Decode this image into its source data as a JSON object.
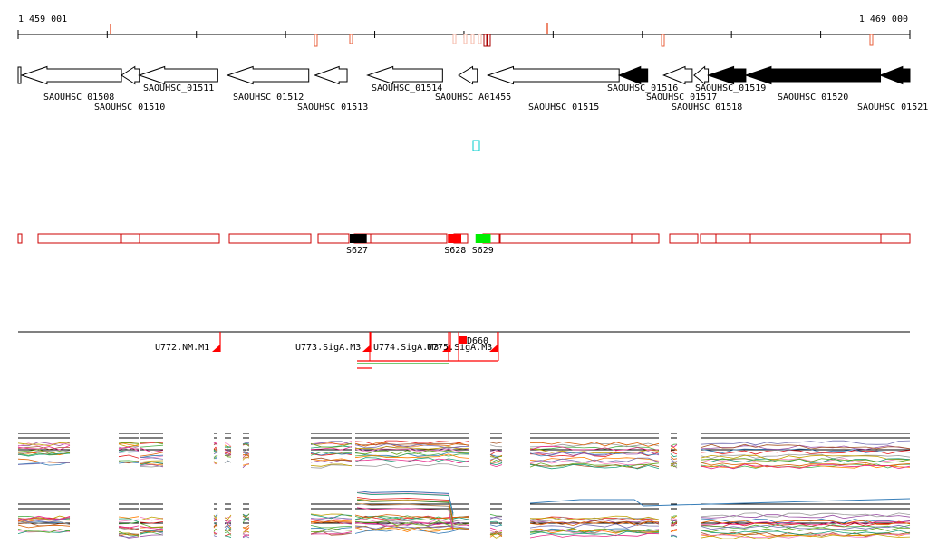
{
  "scale": {
    "start_label": "1 459 001",
    "end_label": "1 469 000",
    "start_bp": 1459001,
    "end_bp": 1469000,
    "marker_color": "#e8613c"
  },
  "genes": [
    {
      "label": "SAOUHSC_01508",
      "start": 1459041,
      "end": 1460160,
      "strand": "-",
      "filled": false
    },
    {
      "label": "SAOUHSC_01510",
      "start": 1460160,
      "end": 1460360,
      "strand": "-",
      "filled": false
    },
    {
      "label": "SAOUHSC_01511",
      "start": 1460360,
      "end": 1461240,
      "strand": "-",
      "filled": false
    },
    {
      "label": "SAOUHSC_01512",
      "start": 1461350,
      "end": 1462260,
      "strand": "-",
      "filled": false
    },
    {
      "label": "SAOUHSC_01513",
      "start": 1462330,
      "end": 1462690,
      "strand": "-",
      "filled": false
    },
    {
      "label": "SAOUHSC_01514",
      "start": 1462920,
      "end": 1463760,
      "strand": "-",
      "filled": false
    },
    {
      "label": "SAOUHSC_A01455",
      "start": 1463940,
      "end": 1464150,
      "strand": "-",
      "filled": false
    },
    {
      "label": "SAOUHSC_01515",
      "start": 1464270,
      "end": 1465740,
      "strand": "-",
      "filled": false
    },
    {
      "label": "SAOUHSC_01516",
      "start": 1465740,
      "end": 1466060,
      "strand": "-",
      "filled": true
    },
    {
      "label": "SAOUHSC_01517",
      "start": 1466240,
      "end": 1466560,
      "strand": "-",
      "filled": false
    },
    {
      "label": "SAOUHSC_01518",
      "start": 1466580,
      "end": 1466740,
      "strand": "-",
      "filled": false
    },
    {
      "label": "SAOUHSC_01519",
      "start": 1466740,
      "end": 1467160,
      "strand": "-",
      "filled": true
    },
    {
      "label": "SAOUHSC_01520",
      "start": 1467160,
      "end": 1468670,
      "strand": "-",
      "filled": true
    },
    {
      "label": "SAOUHSC_01521",
      "start": 1468670,
      "end": 1469000,
      "strand": "-",
      "filled": true
    }
  ],
  "small_rnas": [
    {
      "label": "S627",
      "start": 1462720,
      "end": 1462910,
      "color": "#000000"
    },
    {
      "label": "S628",
      "start": 1463820,
      "end": 1463970,
      "color": "#ff0000"
    },
    {
      "label": "S629",
      "start": 1464130,
      "end": 1464300,
      "color": "#00ee00"
    }
  ],
  "units": [
    {
      "label": "U772.NM.M1"
    },
    {
      "label": "U773.SigA.M3"
    },
    {
      "label": "U774.SigA.M3"
    },
    {
      "label": "U775.SigA.M3"
    }
  ],
  "feature_tag": {
    "label": "D660"
  },
  "colors": {
    "gene_stroke": "#000000",
    "segment_stroke": "#cc0000",
    "unit_color": "#ff0000",
    "cyan_box": "#00cccc"
  }
}
